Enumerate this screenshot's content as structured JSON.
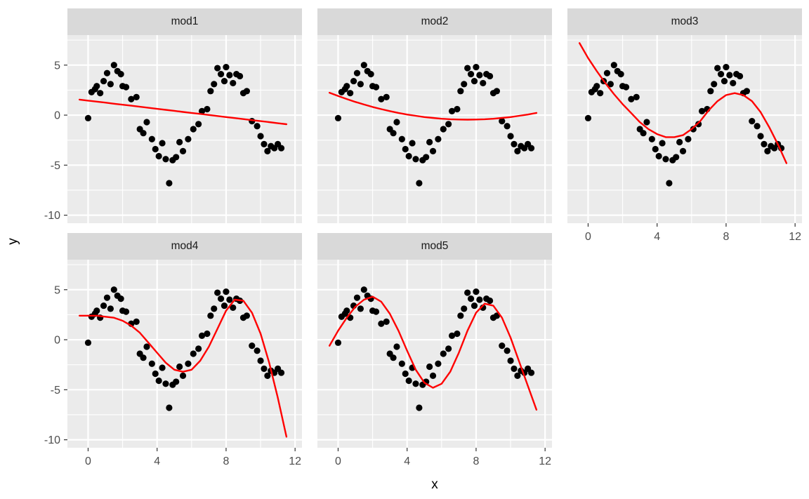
{
  "figure": {
    "xlabel": "x",
    "ylabel": "y",
    "background": "#FFFFFF",
    "panel_bg": "#EBEBEB",
    "strip_bg": "#D9D9D9",
    "grid_color": "#FFFFFF",
    "point_color": "#000000",
    "line_color": "#FF0000",
    "tick_label_color": "#4D4D4D",
    "x_ticks": [
      0,
      4,
      8,
      12
    ],
    "y_ticks": [
      5,
      0,
      -5,
      -10
    ],
    "x_minor": [
      2,
      6,
      10
    ],
    "y_minor": [
      7.5,
      2.5,
      -2.5,
      -7.5
    ],
    "x_domain": [
      -1.2,
      12.4
    ],
    "y_domain": [
      -10.8,
      8.0
    ]
  },
  "chart_data": {
    "type": "scatter",
    "title": "",
    "xlabel": "x",
    "ylabel": "y",
    "grid": true,
    "legend": false,
    "facets": [
      "mod1",
      "mod2",
      "mod3",
      "mod4",
      "mod5"
    ],
    "facet_rows": [
      [
        "mod1",
        "mod2",
        "mod3"
      ],
      [
        "mod4",
        "mod5"
      ]
    ],
    "points": {
      "x": [
        0.0,
        0.2,
        0.4,
        0.5,
        0.7,
        0.9,
        1.1,
        1.3,
        1.5,
        1.7,
        1.9,
        2.0,
        2.2,
        2.5,
        2.8,
        3.0,
        3.2,
        3.4,
        3.7,
        3.9,
        4.1,
        4.3,
        4.5,
        4.7,
        4.9,
        5.1,
        5.3,
        5.5,
        5.8,
        6.1,
        6.4,
        6.6,
        6.9,
        7.1,
        7.3,
        7.5,
        7.7,
        7.9,
        8.0,
        8.2,
        8.4,
        8.6,
        8.8,
        9.0,
        9.2,
        9.5,
        9.8,
        10.0,
        10.2,
        10.4,
        10.6,
        10.8,
        11.0,
        11.2
      ],
      "y": [
        -0.3,
        2.3,
        2.6,
        2.9,
        2.2,
        3.4,
        4.2,
        3.1,
        5.0,
        4.4,
        4.1,
        2.9,
        2.8,
        1.6,
        1.8,
        -1.4,
        -1.8,
        -0.7,
        -2.4,
        -3.4,
        -4.1,
        -2.8,
        -4.4,
        -6.8,
        -4.5,
        -4.2,
        -2.7,
        -3.6,
        -2.4,
        -1.4,
        -0.9,
        0.4,
        0.6,
        2.4,
        3.1,
        4.7,
        4.1,
        3.4,
        4.8,
        4.0,
        3.2,
        4.1,
        3.9,
        2.2,
        2.4,
        -0.6,
        -1.1,
        -2.1,
        -2.9,
        -3.6,
        -3.1,
        -3.3,
        -2.9,
        -3.3
      ]
    },
    "line_x": [
      -0.5,
      0,
      0.5,
      1,
      1.5,
      2,
      2.5,
      3,
      3.5,
      4,
      4.5,
      5,
      5.5,
      6,
      6.5,
      7,
      7.5,
      8,
      8.5,
      9,
      9.5,
      10,
      10.5,
      11,
      11.5
    ],
    "fit_lines": {
      "mod1": [
        1.55,
        1.45,
        1.35,
        1.25,
        1.14,
        1.04,
        0.94,
        0.84,
        0.73,
        0.63,
        0.53,
        0.43,
        0.32,
        0.22,
        0.12,
        0.02,
        -0.09,
        -0.19,
        -0.29,
        -0.4,
        -0.5,
        -0.6,
        -0.7,
        -0.81,
        -0.91
      ],
      "mod2": [
        2.24,
        1.91,
        1.61,
        1.32,
        1.06,
        0.82,
        0.6,
        0.4,
        0.22,
        0.06,
        -0.07,
        -0.19,
        -0.28,
        -0.36,
        -0.41,
        -0.44,
        -0.45,
        -0.44,
        -0.41,
        -0.36,
        -0.28,
        -0.19,
        -0.07,
        0.06,
        0.22
      ],
      "mod3": [
        7.2,
        5.7,
        4.4,
        3.2,
        2.1,
        1.1,
        0.2,
        -0.7,
        -1.4,
        -1.9,
        -2.2,
        -2.2,
        -2.0,
        -1.4,
        -0.6,
        0.5,
        1.4,
        2.0,
        2.2,
        2.0,
        1.4,
        0.3,
        -1.2,
        -2.9,
        -4.8
      ],
      "mod4": [
        2.4,
        2.4,
        2.4,
        2.3,
        2.2,
        1.9,
        1.4,
        0.7,
        -0.3,
        -1.3,
        -2.3,
        -3.0,
        -3.2,
        -3.0,
        -2.1,
        -0.7,
        1.1,
        2.9,
        4.0,
        3.9,
        2.7,
        0.6,
        -2.3,
        -5.8,
        -9.7
      ],
      "mod5": [
        -0.6,
        0.9,
        2.2,
        3.3,
        4.0,
        4.3,
        3.8,
        2.6,
        0.9,
        -1.1,
        -3.0,
        -4.3,
        -4.8,
        -4.4,
        -3.2,
        -1.3,
        0.9,
        2.7,
        3.6,
        3.4,
        2.2,
        0.2,
        -2.2,
        -4.6,
        -7.0
      ]
    }
  }
}
